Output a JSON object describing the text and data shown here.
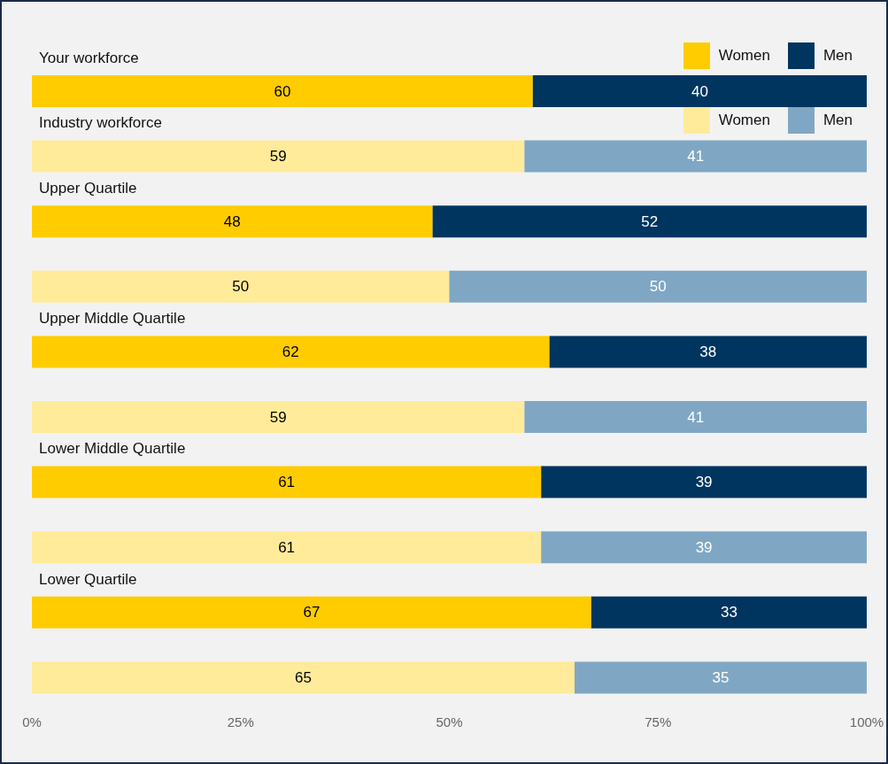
{
  "chart_data": {
    "type": "bar",
    "orientation": "horizontal",
    "stacked": true,
    "legend": "top right",
    "data_labels": true,
    "categories": [
      "Your workforce",
      "Industry workforce",
      "Upper Quartile",
      null,
      "Upper Middle Quartile",
      null,
      "Lower Middle Quartile",
      null,
      "Lower Quartile",
      null
    ],
    "xlim": [
      0,
      100
    ],
    "xticks": [
      {
        "value": 0,
        "label": "0%"
      },
      {
        "value": 25,
        "label": "25%"
      },
      {
        "value": 50,
        "label": "50%"
      },
      {
        "value": 75,
        "label": "75%"
      },
      {
        "value": 100,
        "label": "100%"
      }
    ],
    "series": [
      {
        "name": "Women",
        "color": "#ffcc00",
        "values": [
          60,
          null,
          48,
          null,
          62,
          null,
          61,
          null,
          67,
          null
        ]
      },
      {
        "name": "Men",
        "color": "#003560",
        "values": [
          40,
          null,
          52,
          null,
          38,
          null,
          39,
          null,
          33,
          null
        ]
      },
      {
        "name": "Women",
        "color": "#ffeb99",
        "values": [
          null,
          59,
          null,
          50,
          null,
          59,
          null,
          61,
          null,
          65
        ]
      },
      {
        "name": "Men",
        "color": "#7fa7c4",
        "values": [
          null,
          41,
          null,
          50,
          null,
          41,
          null,
          39,
          null,
          35
        ]
      }
    ]
  }
}
